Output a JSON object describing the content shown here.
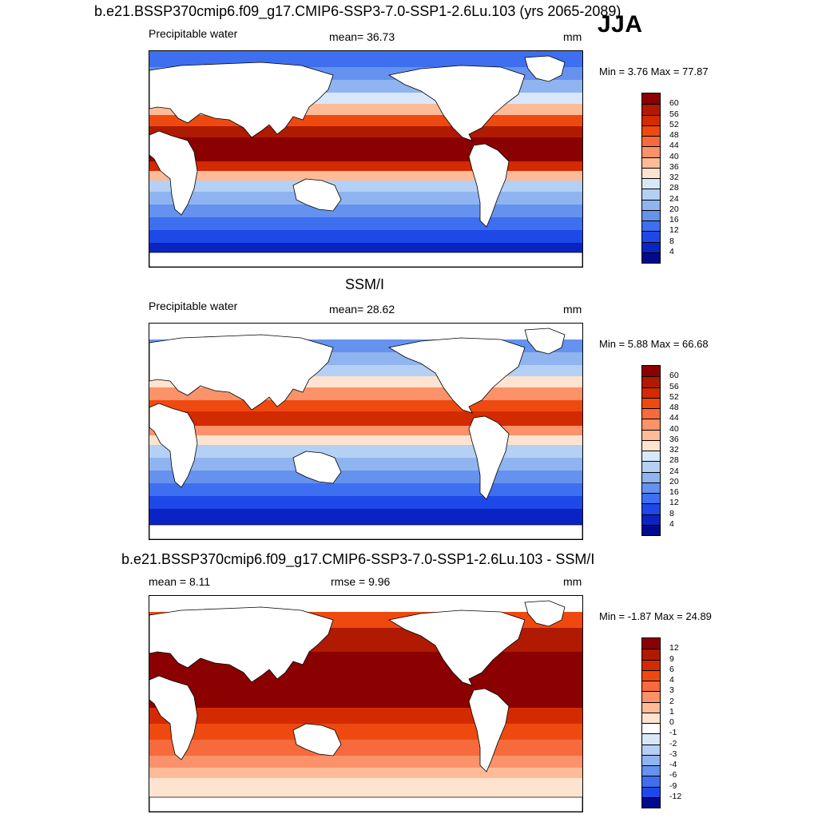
{
  "season": "JJA",
  "panels": [
    {
      "id": "model",
      "title": "b.e21.BSSP370cmip6.f09_g17.CMIP6-SSP3-7.0-SSP1-2.6Lu.103 (yrs 2065-2089)",
      "left_text": "Precipitable water",
      "center_text": "mean=  36.73",
      "units": "mm",
      "minmax": "Min =   3.76 Max =  77.87"
    },
    {
      "id": "obs",
      "title": "SSM/I",
      "left_text": "Precipitable water",
      "center_text": "mean=  28.62",
      "units": "mm",
      "minmax": "Min =   5.88 Max =  66.68"
    },
    {
      "id": "diff",
      "title": "b.e21.BSSP370cmip6.f09_g17.CMIP6-SSP3-7.0-SSP1-2.6Lu.103 - SSM/I",
      "left_text": "mean =   8.11",
      "center_text": "rmse =   9.96",
      "units": "mm",
      "minmax": "Min =  -1.87 Max =  24.89"
    }
  ],
  "chart_data": [
    {
      "type": "heatmap",
      "title": "b.e21.BSSP370cmip6.f09_g17.CMIP6-SSP3-7.0-SSP1-2.6Lu.103 (yrs 2065-2089)",
      "variable": "Precipitable water",
      "units": "mm",
      "mean": 36.73,
      "min": 3.76,
      "max": 77.87,
      "colorbar_levels": [
        "60",
        "56",
        "52",
        "48",
        "44",
        "40",
        "36",
        "32",
        "28",
        "24",
        "20",
        "16",
        "12",
        "8",
        "4"
      ],
      "colorbar_colors": [
        "#8b0000",
        "#b01a00",
        "#d42a00",
        "#ee4a10",
        "#f76a3c",
        "#fb926a",
        "#fdbb98",
        "#fde3d0",
        "#d8e8fa",
        "#b4d0f5",
        "#8fb4f0",
        "#6592ef",
        "#3d6ff0",
        "#1e48e8",
        "#0a24c4",
        "#020a8c"
      ]
    },
    {
      "type": "heatmap",
      "title": "SSM/I",
      "variable": "Precipitable water",
      "units": "mm",
      "mean": 28.62,
      "min": 5.88,
      "max": 66.68,
      "colorbar_levels": [
        "60",
        "56",
        "52",
        "48",
        "44",
        "40",
        "36",
        "32",
        "28",
        "24",
        "20",
        "16",
        "12",
        "8",
        "4"
      ],
      "colorbar_colors": [
        "#8b0000",
        "#b01a00",
        "#d42a00",
        "#ee4a10",
        "#f76a3c",
        "#fb926a",
        "#fdbb98",
        "#fde3d0",
        "#d8e8fa",
        "#b4d0f5",
        "#8fb4f0",
        "#6592ef",
        "#3d6ff0",
        "#1e48e8",
        "#0a24c4",
        "#020a8c"
      ]
    },
    {
      "type": "heatmap",
      "title": "b.e21.BSSP370cmip6.f09_g17.CMIP6-SSP3-7.0-SSP1-2.6Lu.103 - SSM/I",
      "units": "mm",
      "mean": 8.11,
      "rmse": 9.96,
      "min": -1.87,
      "max": 24.89,
      "colorbar_levels": [
        "12",
        "9",
        "6",
        "4",
        "3",
        "2",
        "1",
        "0",
        "-1",
        "-2",
        "-3",
        "-4",
        "-6",
        "-9",
        "-12"
      ],
      "colorbar_colors": [
        "#8b0000",
        "#b01a00",
        "#d42a00",
        "#ee4a10",
        "#f76a3c",
        "#fb926a",
        "#fdbb98",
        "#fde3d0",
        "#ffffff",
        "#d8e8fa",
        "#b4d0f5",
        "#8fb4f0",
        "#6592ef",
        "#3d6ff0",
        "#1e48e8",
        "#020a8c"
      ]
    }
  ]
}
